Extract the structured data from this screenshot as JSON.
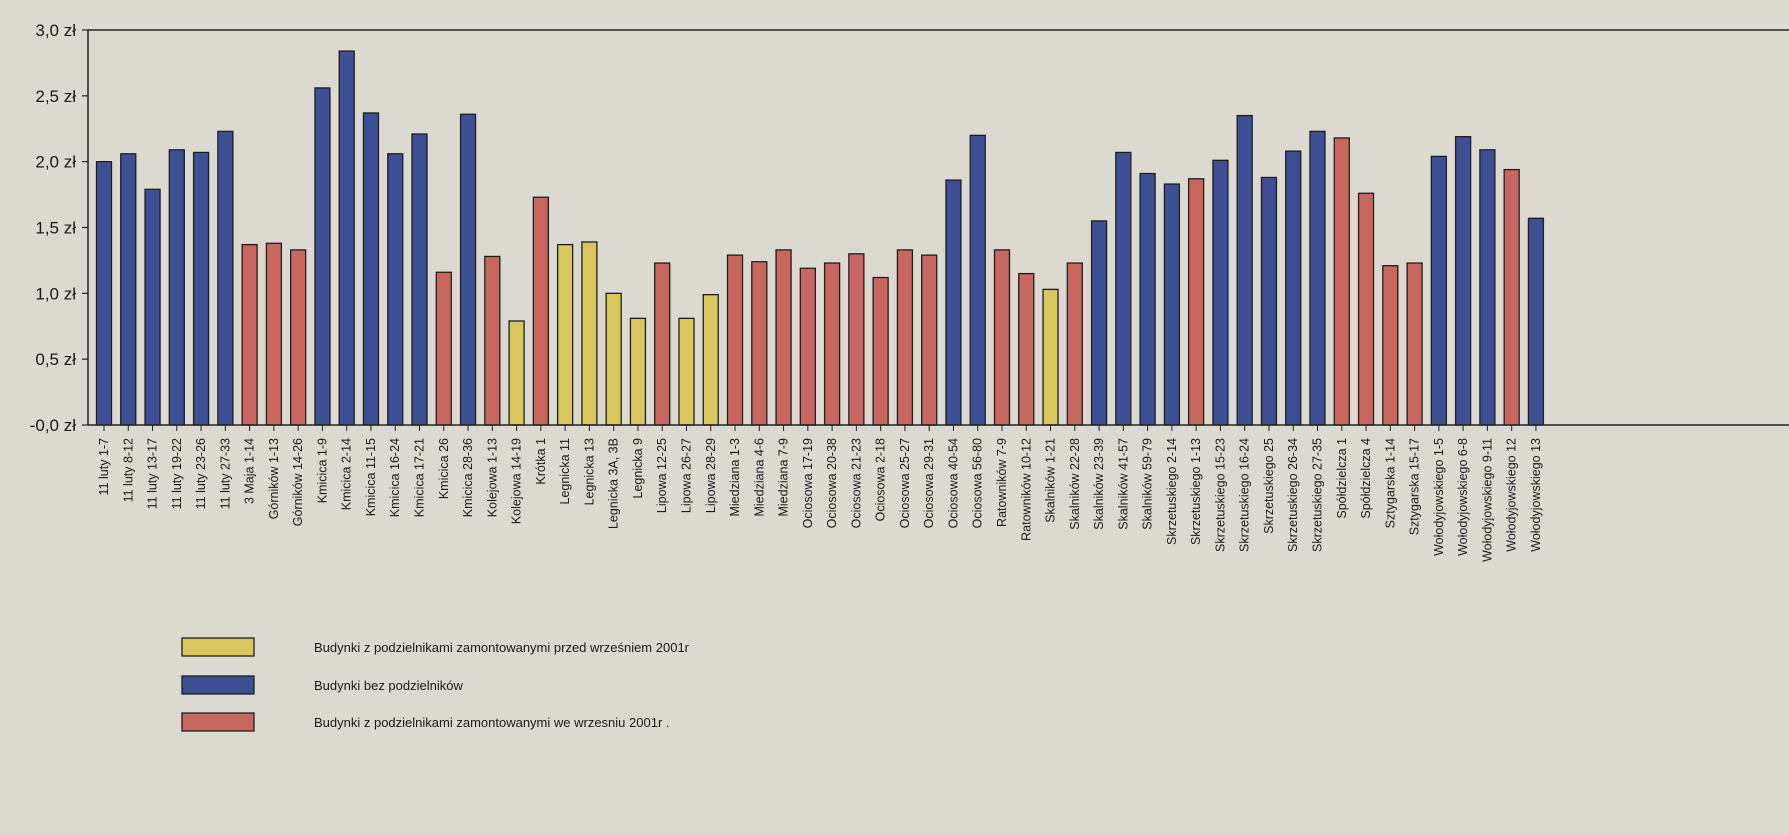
{
  "chart_data": {
    "type": "bar",
    "title": "",
    "xlabel": "",
    "ylabel": "",
    "ylim": [
      0,
      3
    ],
    "yticks": [
      "-0,0 zł",
      "0,5 zł",
      "1,0 zł",
      "1,5 zł",
      "2,0 zł",
      "2,5 zł",
      "3,0 zł"
    ],
    "grid": false,
    "legend_position": "bottom-left",
    "series_colors": {
      "yellow": "#d9c75e",
      "blue": "#3f4f96",
      "red": "#c8675f"
    },
    "legend": [
      {
        "key": "yellow",
        "label": "Budynki z podzielnikami zamontowanymi przed wrześniem 2001r"
      },
      {
        "key": "blue",
        "label": "Budynki bez podzielników"
      },
      {
        "key": "red",
        "label": "Budynki z podzielnikami zamontowanymi we  wrzesniu 2001r ."
      }
    ],
    "categories": [
      "11 luty  1-7",
      "11 luty  8-12",
      "11 luty 13-17",
      "11 luty 19-22",
      "11 luty 23-26",
      "11 luty 27-33",
      "3 Maja  1-14",
      "Górników  1-13",
      "Górników  14-26",
      "Kmicica  1-9",
      "Kmicica  2-14",
      "Kmicica  11-15",
      "Kmicica  16-24",
      "Kmicica  17-21",
      "Kmicica  26",
      "Kmicica  28-36",
      "Kolejowa  1-13",
      "Kolejowa  14-19",
      "Krótka  1",
      "Legnicka  11",
      "Legnicka  13",
      "Legnicka  3A, 3B",
      "Legnicka  9",
      "Lipowa  12-25",
      "Lipowa  26-27",
      "Lipowa  28-29",
      "Miedziana  1-3",
      "Miedziana  4-6",
      "Miedziana  7-9",
      "Ociosowa  17-19",
      "Ociosowa  20-38",
      "Ociosowa  21-23",
      "Ociosowa  2-18",
      "Ociosowa  25-27",
      "Ociosowa  29-31",
      "Ociosowa  40-54",
      "Ociosowa  56-80",
      "Ratowników  7-9",
      "Ratowników  10-12",
      "Skalników  1-21",
      "Skalników  22-28",
      "Skalników  23-39",
      "Skalników  41-57",
      "Skalników  59-79",
      "Skrzetuskiego  2-14",
      "Skrzetuskiego  1-13",
      "Skrzetuskiego  15-23",
      "Skrzetuskiego  16-24",
      "Skrzetuskiego  25",
      "Skrzetuskiego  26-34",
      "Skrzetuskiego  27-35",
      "Spółdzielcza  1",
      "Spółdzielcza  4",
      "Sztygarska  1-14",
      "Sztygarska  15-17",
      "Wołodyjowskiego  1-5",
      "Wołodyjowskiego  6-8",
      "Wołodyjowskiego  9-11",
      "Wołodyjowskiego  12",
      "Wołodyjowskiego  13"
    ],
    "values": [
      2.0,
      2.06,
      1.79,
      2.09,
      2.07,
      2.23,
      1.37,
      1.38,
      1.33,
      2.56,
      2.84,
      2.37,
      2.06,
      2.21,
      1.16,
      2.36,
      1.28,
      0.79,
      1.73,
      1.37,
      1.39,
      1.0,
      0.81,
      1.23,
      0.81,
      0.99,
      1.29,
      1.24,
      1.33,
      1.19,
      1.23,
      1.3,
      1.12,
      1.33,
      1.29,
      1.86,
      2.2,
      1.33,
      1.15,
      1.03,
      1.23,
      1.55,
      2.07,
      1.91,
      1.83,
      1.87,
      2.01,
      2.35,
      1.88,
      2.08,
      2.23,
      2.18,
      1.76,
      1.21,
      1.23,
      2.04,
      2.19,
      2.09,
      1.94,
      1.57
    ],
    "groups": [
      "blue",
      "blue",
      "blue",
      "blue",
      "blue",
      "blue",
      "red",
      "red",
      "red",
      "blue",
      "blue",
      "blue",
      "blue",
      "blue",
      "red",
      "blue",
      "red",
      "yellow",
      "red",
      "yellow",
      "yellow",
      "yellow",
      "yellow",
      "red",
      "yellow",
      "yellow",
      "red",
      "red",
      "red",
      "red",
      "red",
      "red",
      "red",
      "red",
      "red",
      "blue",
      "blue",
      "red",
      "red",
      "yellow",
      "red",
      "blue",
      "blue",
      "blue",
      "blue",
      "red",
      "blue",
      "blue",
      "blue",
      "blue",
      "blue",
      "red",
      "red",
      "red",
      "red",
      "blue",
      "blue",
      "blue",
      "red",
      "blue"
    ]
  }
}
